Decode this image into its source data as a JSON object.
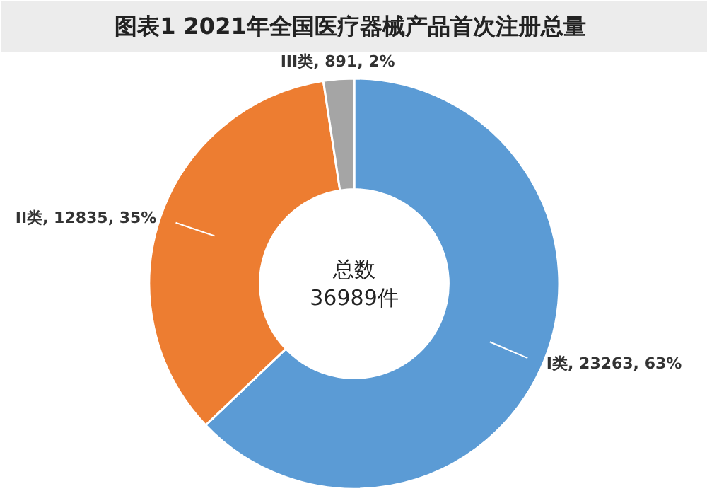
{
  "chart_data": {
    "type": "donut",
    "title": "图表1  2021年全国医疗器械产品首次注册总量",
    "categories": [
      "I类",
      "II类",
      "III类"
    ],
    "values": [
      23263,
      12835,
      891
    ],
    "value_labels": [
      "23263, 63%",
      "12835, 35%",
      "891, 2%"
    ],
    "colors": [
      "#5b9bd5",
      "#ed7d31",
      "#a5a5a5"
    ],
    "annotations": [
      "总数",
      "36989件"
    ]
  }
}
